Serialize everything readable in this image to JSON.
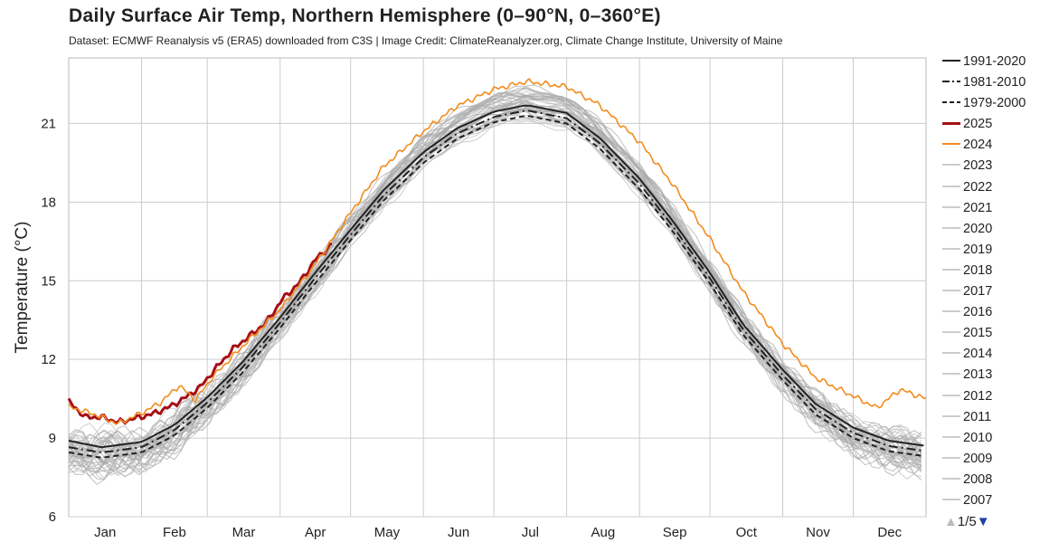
{
  "header": {
    "title": "Daily Surface Air Temp, Northern Hemisphere (0–90°N, 0–360°E)",
    "subtitle": "Dataset: ECMWF Reanalysis v5 (ERA5) downloaded from C3S | Image Credit: ClimateReanalyzer.org, Climate Change Institute, University of Maine"
  },
  "legend": {
    "items": [
      {
        "label": "1991-2020",
        "color": "#222222",
        "style": "solid"
      },
      {
        "label": "1981-2010",
        "color": "#222222",
        "style": "dashdot"
      },
      {
        "label": "1979-2000",
        "color": "#222222",
        "style": "dashed"
      },
      {
        "label": "2025",
        "color": "#a50f15",
        "style": "thick"
      },
      {
        "label": "2024",
        "color": "#f28c1e",
        "style": "solid"
      },
      {
        "label": "2023",
        "color": "#cccccc",
        "style": "solid"
      },
      {
        "label": "2022",
        "color": "#cccccc",
        "style": "solid"
      },
      {
        "label": "2021",
        "color": "#cccccc",
        "style": "solid"
      },
      {
        "label": "2020",
        "color": "#cccccc",
        "style": "solid"
      },
      {
        "label": "2019",
        "color": "#cccccc",
        "style": "solid"
      },
      {
        "label": "2018",
        "color": "#cccccc",
        "style": "solid"
      },
      {
        "label": "2017",
        "color": "#cccccc",
        "style": "solid"
      },
      {
        "label": "2016",
        "color": "#cccccc",
        "style": "solid"
      },
      {
        "label": "2015",
        "color": "#cccccc",
        "style": "solid"
      },
      {
        "label": "2014",
        "color": "#cccccc",
        "style": "solid"
      },
      {
        "label": "2013",
        "color": "#cccccc",
        "style": "solid"
      },
      {
        "label": "2012",
        "color": "#cccccc",
        "style": "solid"
      },
      {
        "label": "2011",
        "color": "#cccccc",
        "style": "solid"
      },
      {
        "label": "2010",
        "color": "#cccccc",
        "style": "solid"
      },
      {
        "label": "2009",
        "color": "#cccccc",
        "style": "solid"
      },
      {
        "label": "2008",
        "color": "#cccccc",
        "style": "solid"
      },
      {
        "label": "2007",
        "color": "#cccccc",
        "style": "solid"
      }
    ],
    "pager": {
      "text": "1/5",
      "up_icon": "triangle-up-icon",
      "down_icon": "triangle-down-icon"
    }
  },
  "chart_data": {
    "type": "line",
    "ylabel": "Temperature (°C)",
    "ylim": [
      6,
      23.5
    ],
    "xlim": [
      1,
      366
    ],
    "y_ticks": [
      6,
      9,
      12,
      15,
      18,
      21
    ],
    "month_labels": [
      "Jan",
      "Feb",
      "Mar",
      "Apr",
      "May",
      "Jun",
      "Jul",
      "Aug",
      "Sep",
      "Oct",
      "Nov",
      "Dec"
    ],
    "month_start_days": [
      1,
      32,
      60,
      91,
      121,
      152,
      182,
      213,
      244,
      274,
      305,
      335
    ],
    "grid": true,
    "legend_position": "right",
    "series": [
      {
        "name": "1991-2020",
        "color": "#222222",
        "style": "solid",
        "x": [
          1,
          15,
          32,
          46,
          60,
          75,
          91,
          105,
          121,
          135,
          152,
          166,
          182,
          196,
          213,
          227,
          244,
          258,
          274,
          288,
          305,
          319,
          335,
          350,
          366
        ],
        "y": [
          8.9,
          8.65,
          8.85,
          9.5,
          10.55,
          11.9,
          13.6,
          15.2,
          16.95,
          18.45,
          19.9,
          20.8,
          21.45,
          21.7,
          21.4,
          20.45,
          18.9,
          17.3,
          15.3,
          13.35,
          11.6,
          10.3,
          9.4,
          8.9,
          8.7
        ]
      },
      {
        "name": "1981-2010",
        "color": "#222222",
        "style": "dashdot",
        "x": [
          1,
          15,
          32,
          46,
          60,
          75,
          91,
          105,
          121,
          135,
          152,
          166,
          182,
          196,
          213,
          227,
          244,
          258,
          274,
          288,
          305,
          319,
          335,
          350,
          366
        ],
        "y": [
          8.65,
          8.45,
          8.65,
          9.3,
          10.35,
          11.7,
          13.4,
          15.0,
          16.75,
          18.25,
          19.7,
          20.6,
          21.25,
          21.5,
          21.2,
          20.25,
          18.7,
          17.1,
          15.1,
          13.15,
          11.4,
          10.1,
          9.2,
          8.7,
          8.5
        ]
      },
      {
        "name": "1979-2000",
        "color": "#222222",
        "style": "dashed",
        "x": [
          1,
          15,
          32,
          46,
          60,
          75,
          91,
          105,
          121,
          135,
          152,
          166,
          182,
          196,
          213,
          227,
          244,
          258,
          274,
          288,
          305,
          319,
          335,
          350,
          366
        ],
        "y": [
          8.45,
          8.25,
          8.45,
          9.1,
          10.15,
          11.5,
          13.2,
          14.8,
          16.55,
          18.05,
          19.5,
          20.4,
          21.05,
          21.3,
          21.0,
          20.05,
          18.5,
          16.9,
          14.9,
          12.95,
          11.2,
          9.9,
          9.0,
          8.5,
          8.3
        ]
      },
      {
        "name": "2025",
        "color": "#a50f15",
        "style": "thick",
        "x": [
          1,
          8,
          15,
          22,
          29,
          36,
          43,
          50,
          57,
          64,
          71,
          78,
          85,
          92,
          99,
          106,
          113
        ],
        "y": [
          10.4,
          9.8,
          9.8,
          9.6,
          9.75,
          9.9,
          10.15,
          10.5,
          10.95,
          11.7,
          12.4,
          12.9,
          13.4,
          14.3,
          14.9,
          15.8,
          16.4
        ]
      },
      {
        "name": "2024",
        "color": "#f28c1e",
        "style": "solid",
        "x": [
          1,
          12,
          22,
          33,
          40,
          48,
          55,
          62,
          75,
          91,
          105,
          121,
          135,
          152,
          166,
          182,
          196,
          213,
          227,
          244,
          258,
          274,
          288,
          305,
          319,
          335,
          345,
          355,
          366
        ],
        "y": [
          10.2,
          9.9,
          9.55,
          10.0,
          10.35,
          11.0,
          10.45,
          11.3,
          12.5,
          13.9,
          15.5,
          17.6,
          19.35,
          20.7,
          21.65,
          22.3,
          22.6,
          22.4,
          21.7,
          20.3,
          18.7,
          16.6,
          14.6,
          12.6,
          11.3,
          10.6,
          10.15,
          10.85,
          10.5
        ]
      }
    ]
  }
}
